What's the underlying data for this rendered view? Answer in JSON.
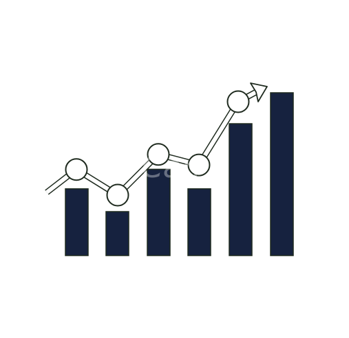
{
  "illustration": {
    "subject": "growth-chart-icon",
    "bar_color": "#16223f",
    "line_color": "#ffffff",
    "outline_color": "#1e2a1e",
    "bar_levels": [
      0.41,
      0.27,
      0.53,
      0.41,
      0.81,
      1.0
    ],
    "trend_levels": [
      0.55,
      0.38,
      0.65,
      0.58,
      1.0
    ]
  },
  "watermark": {
    "text": "Can"
  }
}
